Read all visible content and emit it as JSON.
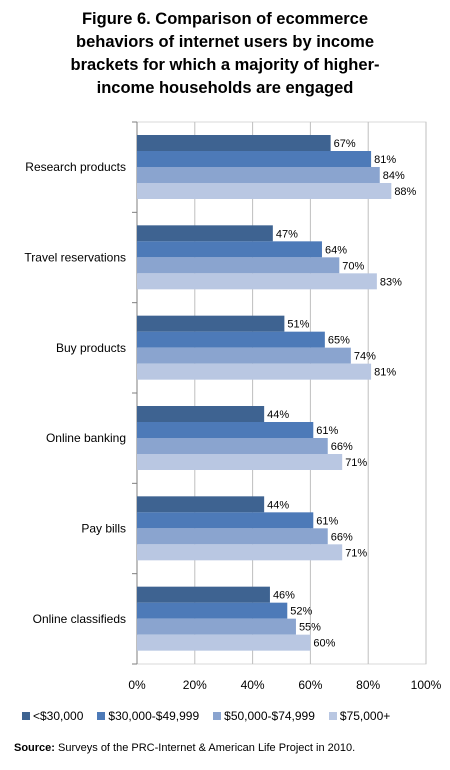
{
  "title_lines": [
    "Figure 6. Comparison of ecommerce",
    "behaviors of internet users by income",
    "brackets for which a majority of higher-",
    "income households are engaged"
  ],
  "source": {
    "label": "Source:",
    "text": " Surveys of the PRC-Internet & American Life Project in 2010."
  },
  "colors": [
    "#3e6391",
    "#4d7ab8",
    "#8aa4cf",
    "#b9c7e2"
  ],
  "chart_data": {
    "type": "bar",
    "orientation": "horizontal",
    "categories": [
      "Research products",
      "Travel reservations",
      "Buy products",
      "Online banking",
      "Pay bills",
      "Online classifieds"
    ],
    "series": [
      {
        "name": "<$30,000",
        "values": [
          67,
          47,
          51,
          44,
          44,
          46
        ]
      },
      {
        "name": "$30,000-$49,999",
        "values": [
          81,
          64,
          65,
          61,
          61,
          52
        ]
      },
      {
        "name": "$50,000-$74,999",
        "values": [
          84,
          70,
          74,
          66,
          66,
          55
        ]
      },
      {
        "name": "$75,000+",
        "values": [
          88,
          83,
          81,
          71,
          71,
          60
        ]
      }
    ],
    "xlim": [
      0,
      100
    ],
    "xticks": [
      "0%",
      "20%",
      "40%",
      "60%",
      "80%",
      "100%"
    ],
    "value_suffix": "%",
    "grid": "vertical",
    "legend_position": "bottom"
  }
}
